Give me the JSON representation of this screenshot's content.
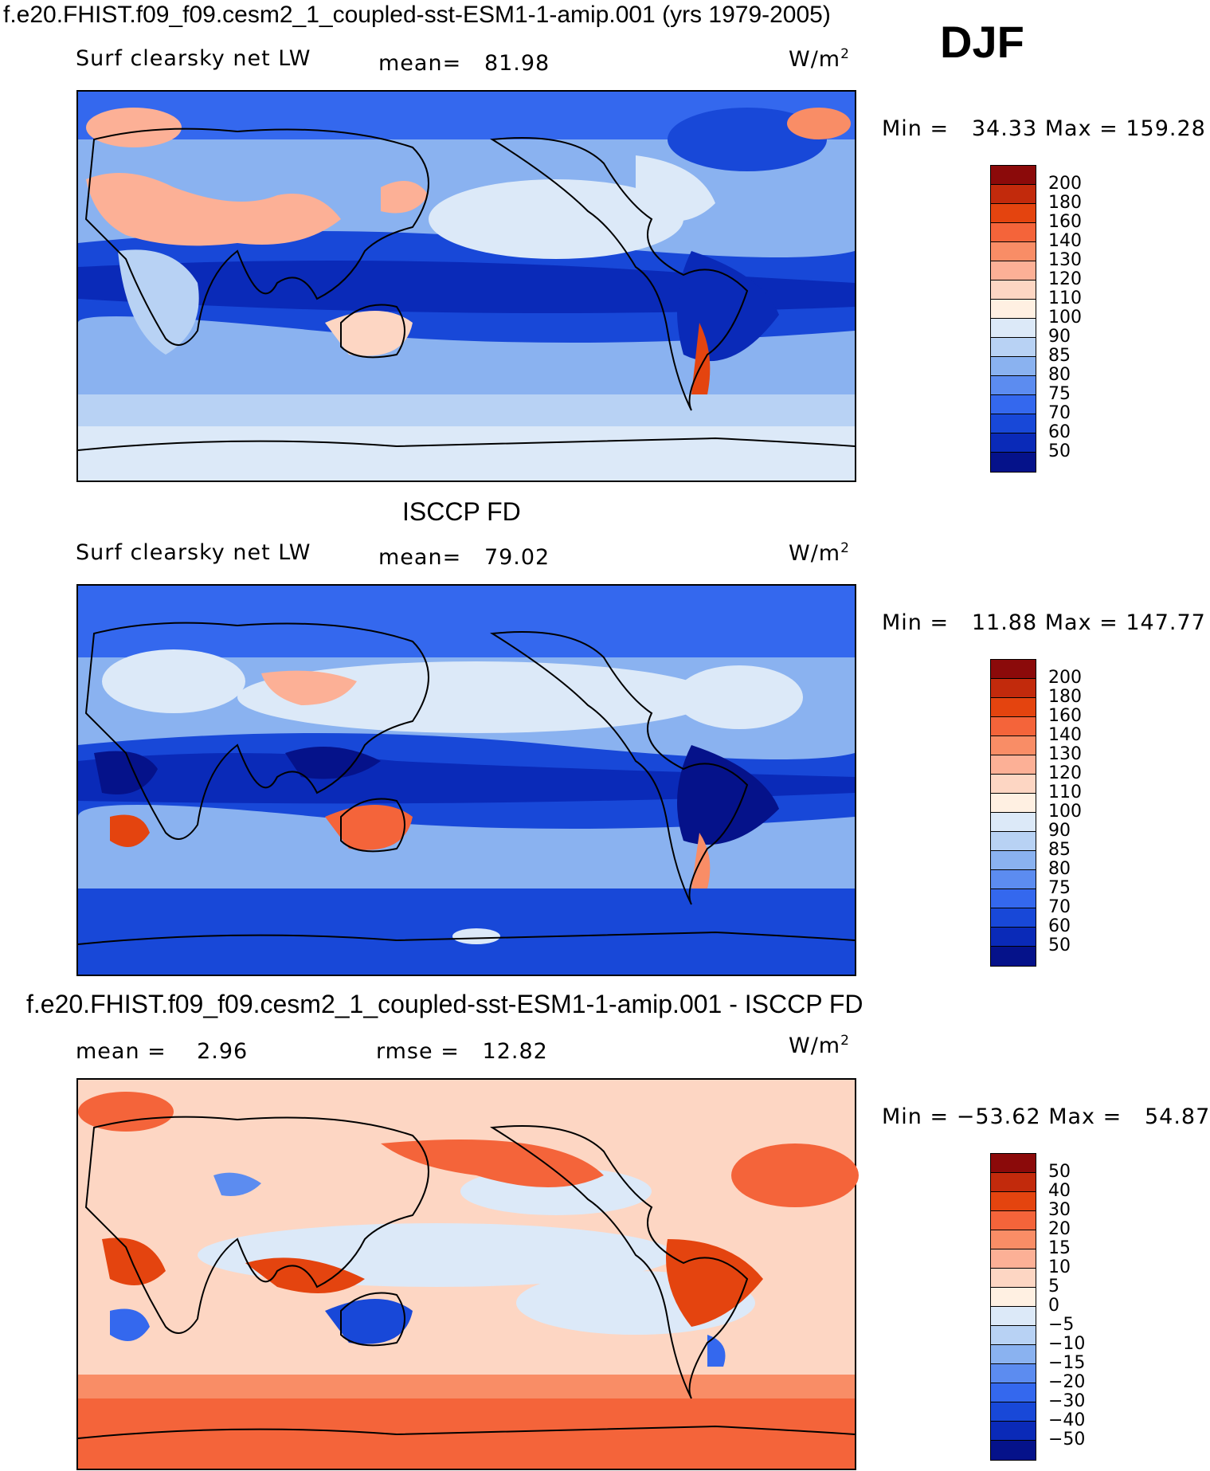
{
  "header": {
    "title": "f.e20.FHIST.f09_f09.cesm2_1_coupled-sst-ESM1-1-amip.001 (yrs 1979-2005)",
    "season": "DJF"
  },
  "panels": [
    {
      "id": "model",
      "heading": "",
      "variable": "Surf clearsky net LW",
      "stat_text": "mean=   81.98",
      "units": "W/m",
      "units_sup": "2",
      "minmax": "Min =   34.33 Max = 159.28",
      "colorbar": {
        "labels": [
          "200",
          "180",
          "160",
          "140",
          "130",
          "120",
          "110",
          "100",
          "90",
          "85",
          "80",
          "75",
          "70",
          "60",
          "50"
        ],
        "colors": [
          "#8b0a0a",
          "#c22a0c",
          "#e4440f",
          "#f4643a",
          "#f98d66",
          "#fcb096",
          "#fdd6c3",
          "#fff0e2",
          "#dce9f8",
          "#b8d2f4",
          "#8ab2f0",
          "#5c8cf0",
          "#3468ee",
          "#1848d8",
          "#0a2ab8",
          "#05128a"
        ]
      }
    },
    {
      "id": "obs",
      "heading": "ISCCP FD",
      "variable": "Surf clearsky net LW",
      "stat_text": "mean=   79.02",
      "units": "W/m",
      "units_sup": "2",
      "minmax": "Min =   11.88 Max = 147.77",
      "colorbar": {
        "labels": [
          "200",
          "180",
          "160",
          "140",
          "130",
          "120",
          "110",
          "100",
          "90",
          "85",
          "80",
          "75",
          "70",
          "60",
          "50"
        ],
        "colors": [
          "#8b0a0a",
          "#c22a0c",
          "#e4440f",
          "#f4643a",
          "#f98d66",
          "#fcb096",
          "#fdd6c3",
          "#fff0e2",
          "#dce9f8",
          "#b8d2f4",
          "#8ab2f0",
          "#5c8cf0",
          "#3468ee",
          "#1848d8",
          "#0a2ab8",
          "#05128a"
        ]
      }
    },
    {
      "id": "diff",
      "heading": "f.e20.FHIST.f09_f09.cesm2_1_coupled-sst-ESM1-1-amip.001 - ISCCP FD",
      "variable": "",
      "stat_mean": "mean =    2.96",
      "stat_rmse": "rmse =   12.82",
      "units": "W/m",
      "units_sup": "2",
      "minmax": "Min = −53.62 Max =   54.87",
      "colorbar": {
        "labels": [
          "50",
          "40",
          "30",
          "20",
          "15",
          "10",
          "5",
          "0",
          "−5",
          "−10",
          "−15",
          "−20",
          "−30",
          "−40",
          "−50"
        ],
        "colors": [
          "#8b0a0a",
          "#c22a0c",
          "#e4440f",
          "#f4643a",
          "#f98d66",
          "#fcb096",
          "#fdd6c3",
          "#fff0e2",
          "#dce9f8",
          "#b8d2f4",
          "#8ab2f0",
          "#5c8cf0",
          "#3468ee",
          "#1848d8",
          "#0a2ab8",
          "#05128a"
        ]
      }
    }
  ]
}
